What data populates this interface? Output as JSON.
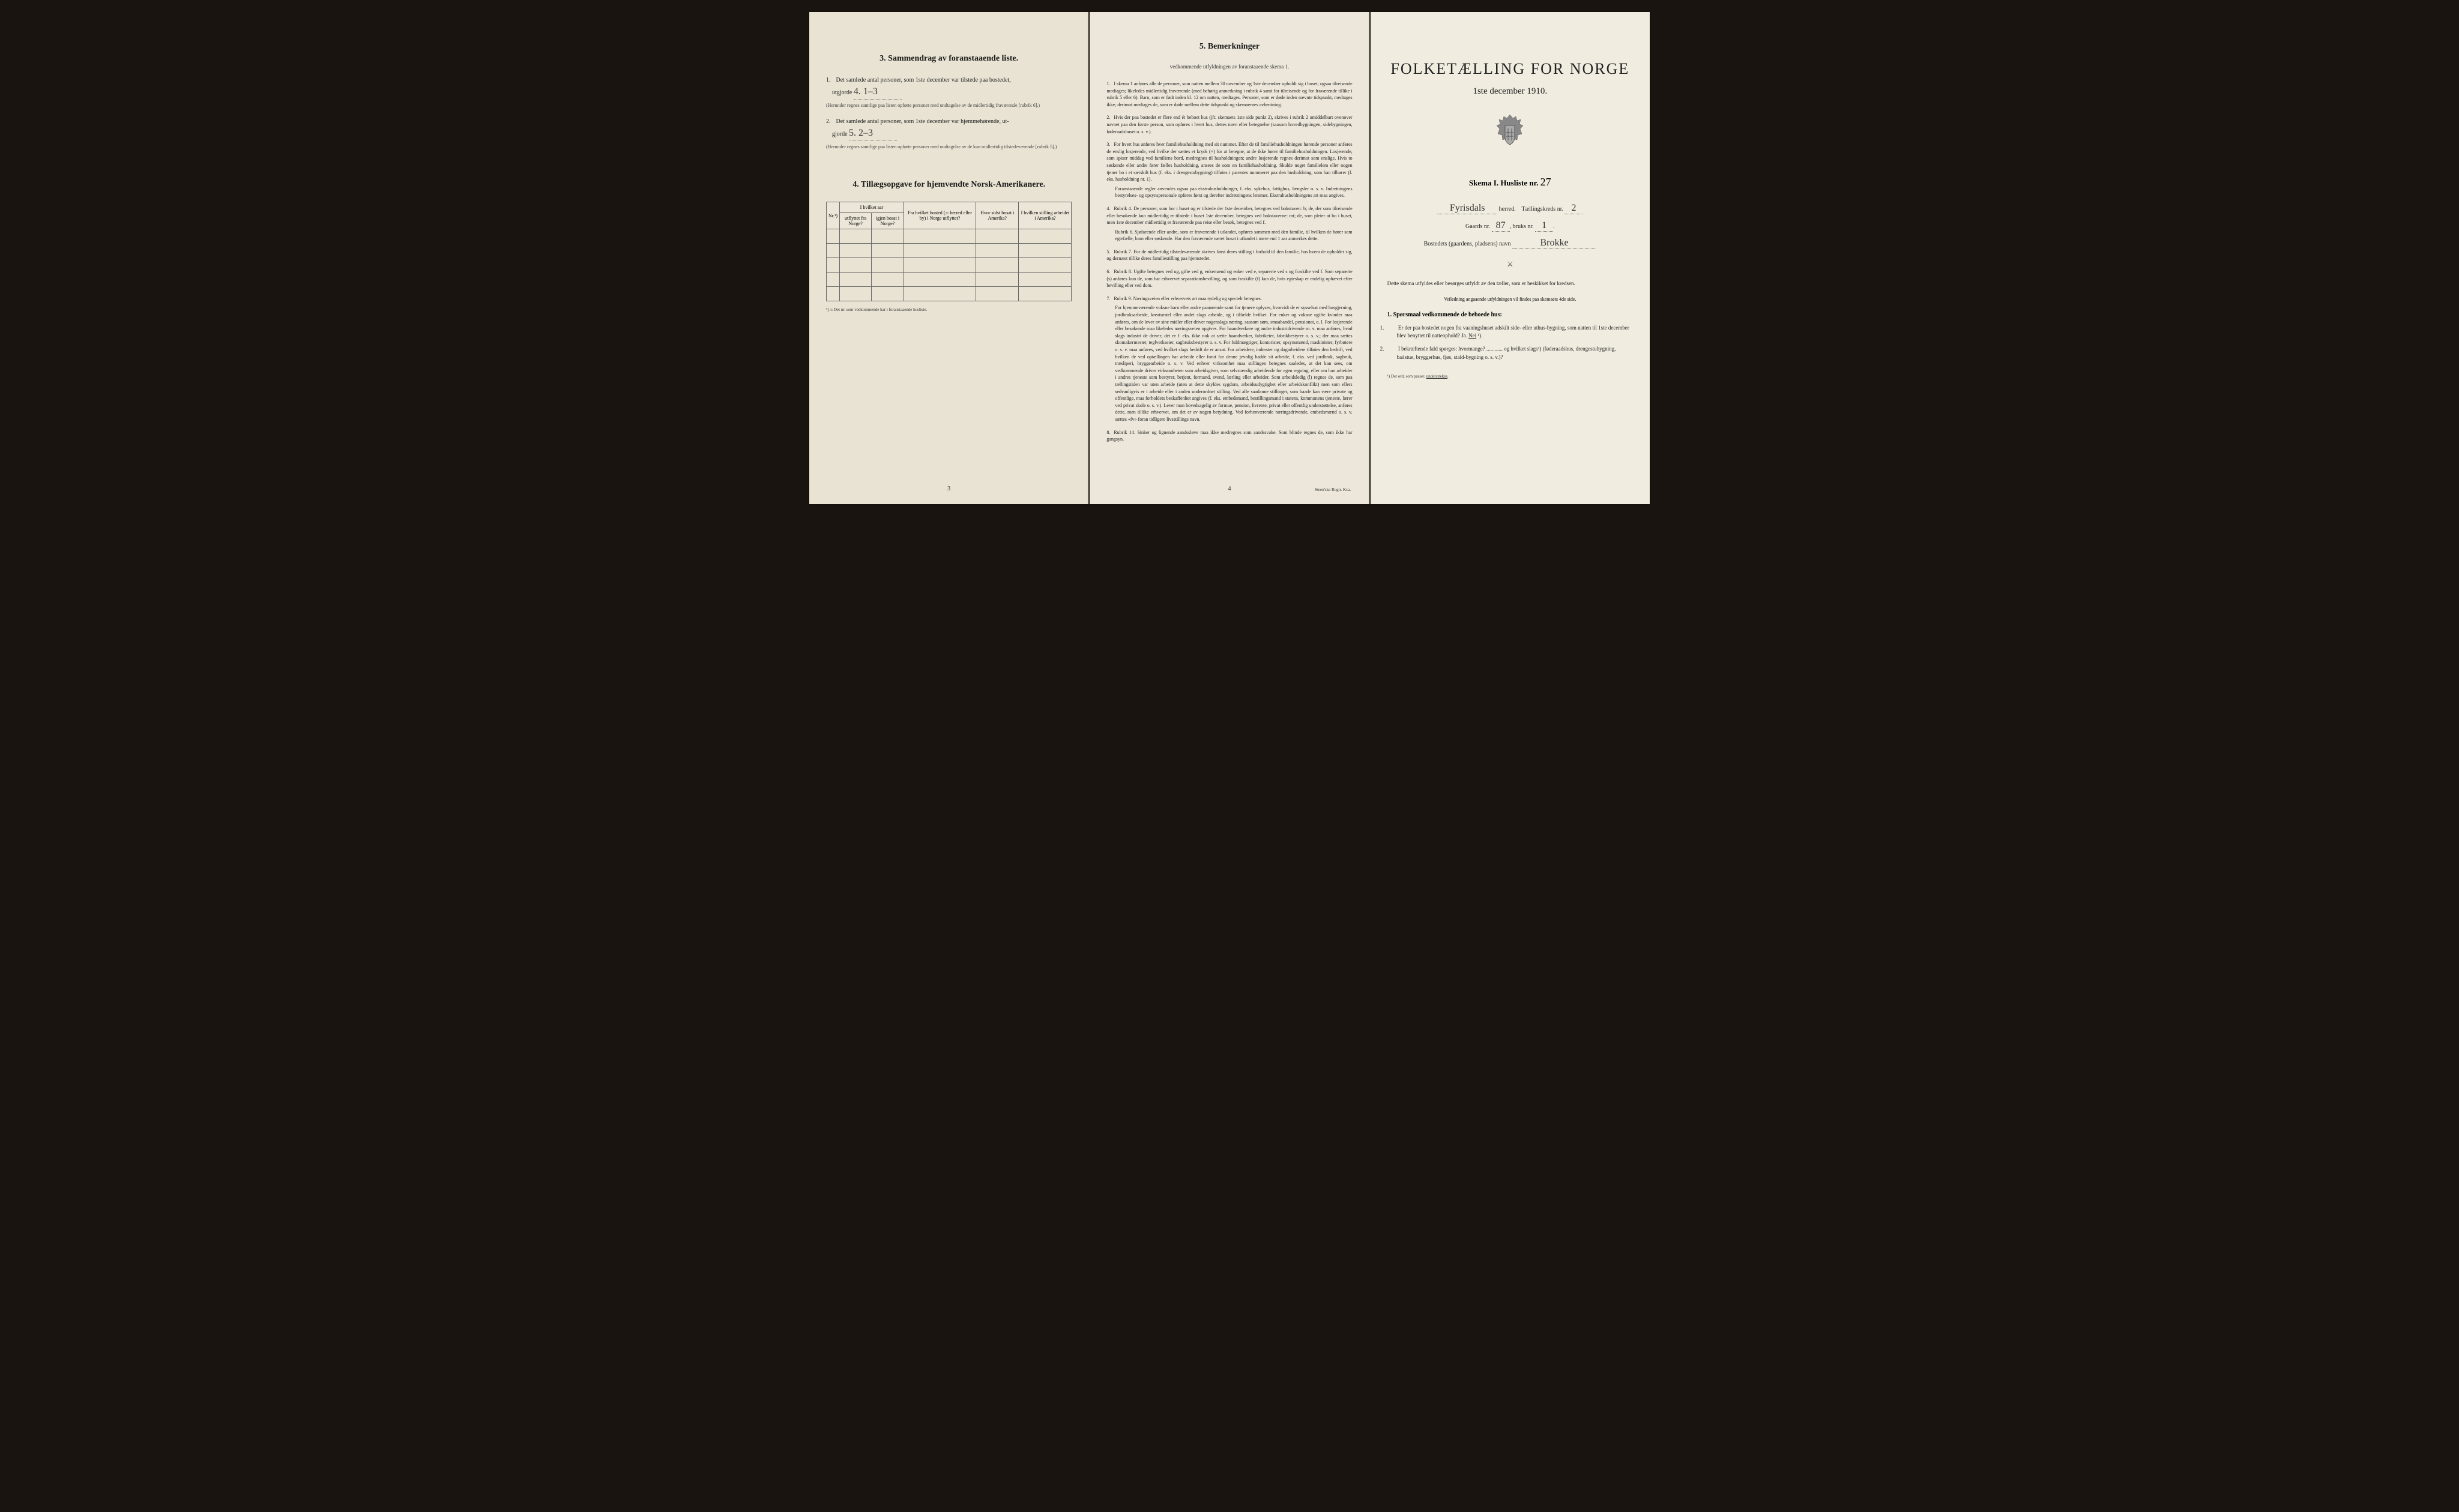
{
  "colors": {
    "page_bg": "#1a1410",
    "paper_left": "#e8e3d2",
    "paper_middle": "#ece7da",
    "paper_right": "#f0ecdf",
    "text": "#222222",
    "border": "#666666"
  },
  "left": {
    "section3_title": "3.   Sammendrag av foranstaaende liste.",
    "item1_text": "Det samlede antal personer, som 1ste december var tilstede paa bostedet,",
    "item1_label": "utgjorde",
    "item1_value": "4.   1–3",
    "item1_note": "(Herunder regnes samtlige paa listen opførte personer med undtagelse av de midlertidig fraværende [rubrik 6].)",
    "item2_text": "Det samlede antal personer, som 1ste december var hjemmehørende, ut-",
    "item2_label": "gjorde",
    "item2_value": "5.   2–3",
    "item2_note": "(Herunder regnes samtlige paa listen opførte personer med undtagelse av de kun midlertidig tilstedeværende [rubrik 5].)",
    "section4_title": "4.   Tillægsopgave for hjemvendte Norsk-Amerikanere.",
    "table": {
      "col_nr": "Nr.¹)",
      "col_group": "I hvilket aar",
      "col_utflyttet": "utflyttet fra Norge?",
      "col_igjen": "igjen bosat i Norge?",
      "col_bosted": "Fra hvilket bosted (ɔ: herred eller by) i Norge utflyttet?",
      "col_amerika": "Hvor sidst bosat i Amerika?",
      "col_stilling": "I hvilken stilling arbeidet i Amerika?",
      "rows": 5
    },
    "footnote": "¹) ɔ: Det nr. som vedkommende har i foranstaaende husliste.",
    "page_num": "3"
  },
  "middle": {
    "title": "5.   Bemerkninger",
    "subtitle": "vedkommende utfyldningen av foranstaaende skema 1.",
    "items": [
      {
        "n": "1.",
        "text": "I skema 1 anføres alle de personer, som natten mellem 30 november og 1ste december opholdt sig i huset; ogsaa tilreisende medtages; likeledes midlertidig fraværende (med behørig anmerkning i rubrik 4 samt for tilreisende og for fraværende tillike i rubrik 5 eller 6). Barn, som er født inden kl. 12 om natten, medtages. Personer, som er døde inden nævnte tidspunkt, medtages ikke; derimot medtages de, som er døde mellem dette tidspunkt og skemaernes avhentning."
      },
      {
        "n": "2.",
        "text": "Hvis der paa bostedet er flere end ét beboet hus (jfr. skemaets 1ste side punkt 2), skrives i rubrik 2 umiddelbart ovenover navnet paa den første person, som opføres i hvert hus, dettes navn eller betegnelse (saasom hovedbygningen, sidebygningen, føderaadshuset o. s. v.)."
      },
      {
        "n": "3.",
        "text": "For hvert hus anføres hver familiehusholdning med sit nummer. Efter de til familiehusholdningen hørende personer anføres de enslig losjerende, ved hvilke der sættes et kryds (×) for at betegne, at de ikke hører til familiehusholdningen. Losjerende, som spiser middag ved familiens bord, medregnes til husholdningen; andre losjerende regnes derimot som enslige. Hvis to søskende eller andre fører fælles husholdning, ansees de som en familiehusholdning. Skulde noget familielem eller nogen tjener bo i et særskilt hus (f. eks. i drengestubygning) tilføies i parentes nummeret paa den husholdning, som han tilhører (f. eks. husholdning nr. 1).",
        "sub": "Foranstaaende regler anvendes ogsaa paa ekstrahusholdninger, f. eks. sykehus, fattighus, fængsler o. s. v. Indretningens bestyrelses- og opsynspersonale opføres først og derefter indretningens lemmer. Ekstrahusholdningens art maa angives."
      },
      {
        "n": "4.",
        "text": "Rubrik 4. De personer, som bor i huset og er tilstede der 1ste december, betegnes ved bokstaven: b; de, der som tilreisende eller besøkende kun midlertidig er tilstede i huset 1ste december, betegnes ved bokstaverne: mt; de, som pleier at bo i huset, men 1ste december midlertidig er fraværende paa reise eller besøk, betegnes ved f.",
        "sub": "Rubrik 6. Sjøfarende eller andre, som er fraværende i utlandet, opføres sammen med den familie, til hvilken de hører som egtefælle, barn eller søskende. Har den fraværende været bosat i utlandet i mere end 1 aar anmerkes dette."
      },
      {
        "n": "5.",
        "text": "Rubrik 7. For de midlertidig tilstedeværende skrives først deres stilling i forhold til den familie, hos hvem de opholder sig, og dernæst tillike deres familiestilling paa hjemstedet."
      },
      {
        "n": "6.",
        "text": "Rubrik 8. Ugifte betegnes ved ug, gifte ved g, enkemænd og enker ved e, separerte ved s og fraskilte ved f. Som separerte (s) anføres kun de, som har erhvervet separationsbevilling, og som fraskilte (f) kun de, hvis egteskap er endelig ophævet efter bevilling eller ved dom."
      },
      {
        "n": "7.",
        "text": "Rubrik 9. Næringsveien eller erhvervets art maa tydelig og specielt betegnes.",
        "sub": "For hjemmeværende voksne barn eller andre paarørende samt for tjenere oplyses, hvorvidt de er sysselsat med husgjerning, jordbruksarbeide, kreaturstel eller andet slags arbeide, og i tilfælde hvilket. For enker og voksne ugifte kvinder maa anføres, om de lever av sine midler eller driver nogenslags næring, saasom søm, smaahandel, pensionat, o. l. For losjerende eller besøkende maa likeledes næringsveien opgives. For haandverkere og andre industridrivende m. v. maa anføres, hvad slags industri de driver; det er f. eks. ikke nok at sætte haandverker, fabrikeier, fabrikbestyrer o. s. v.; der maa sættes skomakermester, teglverkseier, sagbruksbestyrer o. s. v. For fuldmægtiger, kontorister, opsynsmænd, maskinister, fyrbøtere o. s. v. maa anføres, ved hvilket slags bedrift de er ansat. For arbeidere, inderster og dagarbeidere tilføies den bedrift, ved hvilken de ved optællingen har arbeide eller forut for denne jevnlig hadde sit arbeide, f. eks. ved jordbruk, sagbruk, træsliperi, bryggearbeide o. s. v. Ved enhver virksomhet maa stillingen betegnes saaledes, at det kan sees, om vedkommende driver virksomheten som arbeidsgiver, som selvstændig arbeidende for egen regning, eller om han arbeider i andres tjeneste som bestyrer, betjent, formand, svend, lærling eller arbeider. Som arbeidsledig (l) regnes de, som paa tællingstiden var uten arbeide (uten at dette skyldes sygdom, arbeidsudygtighet eller arbeidskonflikt) men som ellers sedvanligvis er i arbeide eller i anden underordnet stilling. Ved alle saadanne stillinger, som baade kan være private og offentlige, maa forholdets beskaffenhet angives (f. eks. embedsmand, bestillingsmand i statens, kommunens tjeneste, lærer ved privat skole o. s. v.). Lever man hovedsagelig av formue, pension, livrente, privat eller offentlig understøttelse, anføres dette, men tillike erhvervet, om det er av nogen betydning. Ved forhenværende næringsdrivende, embedsmænd o. s. v. sættes «fv» foran tidligere livsstillings navn."
      },
      {
        "n": "8.",
        "text": "Rubrik 14. Sinker og lignende aandssløve maa ikke medregnes som aandssvake. Som blinde regnes de, som ikke har gangsyn."
      }
    ],
    "page_num": "4",
    "printer": "Steen'ske Bogtr. Kr.a."
  },
  "right": {
    "title": "FOLKETÆLLING FOR NORGE",
    "date": "1ste december 1910.",
    "skema_label": "Skema I.   Husliste nr.",
    "husliste_nr": "27",
    "herred_value": "Fyrisdals",
    "herred_label": "herred.",
    "kreds_label": "Tællingskreds nr.",
    "kreds_nr": "2",
    "gaards_label": "Gaards nr.",
    "gaards_nr": "87",
    "bruks_label": "bruks nr.",
    "bruks_nr": "1",
    "bosted_label": "Bostedets (gaardens, pladsens) navn",
    "bosted_value": "Brokke",
    "instructions": "Dette skema utfyldes eller besørges utfyldt av den tæller, som er beskikket for kredsen.",
    "instructions_sub": "Veiledning angaaende utfyldningen vil findes paa skemaets 4de side.",
    "q_header": "1. Spørsmaal vedkommende de beboede hus:",
    "q1": "Er der paa bostedet nogen fra vaaningshuset adskilt side- eller uthus-bygning, som natten til 1ste december blev benyttet til natteophold?   Ja.   Nei ¹).",
    "q2": "I bekræftende fald spørges: hvormange? ............ og hvilket slags¹) (føderaadshus, drengestubygning, badstue, bryggerhus, fjøs, stald-bygning o. s. v.)?",
    "footnote": "¹) Det ord, som passer, understrekes."
  }
}
